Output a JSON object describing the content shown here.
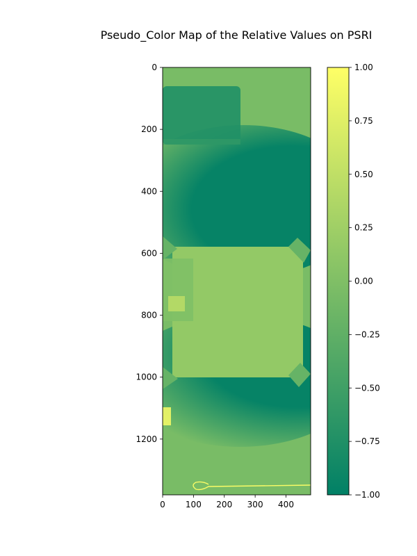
{
  "chart_data": {
    "type": "heatmap",
    "title": "Pseudo_Color Map of the Relative Values on PSRI",
    "xlabel": "",
    "ylabel": "",
    "image_width": 480,
    "image_height": 1380,
    "xticks": [
      0,
      100,
      200,
      300,
      400
    ],
    "yticks": [
      0,
      200,
      400,
      600,
      800,
      1000,
      1200
    ],
    "xtick_labels": [
      "0",
      "100",
      "200",
      "300",
      "400"
    ],
    "ytick_labels": [
      "0",
      "200",
      "400",
      "600",
      "800",
      "1000",
      "1200"
    ],
    "colormap": "summer",
    "colormap_stops": [
      "#008066",
      "#80bf66",
      "#ffff66"
    ],
    "color_range": [
      -1.0,
      1.0
    ],
    "colorbar_ticks": [
      1.0,
      0.75,
      0.5,
      0.25,
      0.0,
      -0.25,
      -0.5,
      -0.75,
      -1.0
    ],
    "colorbar_tick_labels": [
      "1.00",
      "0.75",
      "0.50",
      "0.25",
      "0.00",
      "−0.25",
      "−0.50",
      "−0.75",
      "−1.00"
    ],
    "background_value": -0.05,
    "regions": [
      {
        "name": "upper-dark-band",
        "value": -0.95,
        "x_range": [
          0,
          480
        ],
        "y_range": [
          230,
          560
        ],
        "shape": "ellipse"
      },
      {
        "name": "lower-dark-band",
        "value": -0.95,
        "x_range": [
          0,
          480
        ],
        "y_range": [
          1000,
          1240
        ],
        "shape": "ellipse"
      },
      {
        "name": "top-left-block",
        "value": -0.75,
        "x_range": [
          0,
          250
        ],
        "y_range": [
          60,
          250
        ]
      },
      {
        "name": "central-sample",
        "value": 0.15,
        "x_range": [
          20,
          450
        ],
        "y_range": [
          580,
          1000
        ]
      },
      {
        "name": "left-edge-bright-patch",
        "value": 0.95,
        "x_range": [
          0,
          30
        ],
        "y_range": [
          1100,
          1200
        ]
      },
      {
        "name": "bottom-wire",
        "value": 0.95,
        "x_range": [
          100,
          480
        ],
        "y_range": [
          1345,
          1360
        ]
      }
    ]
  }
}
